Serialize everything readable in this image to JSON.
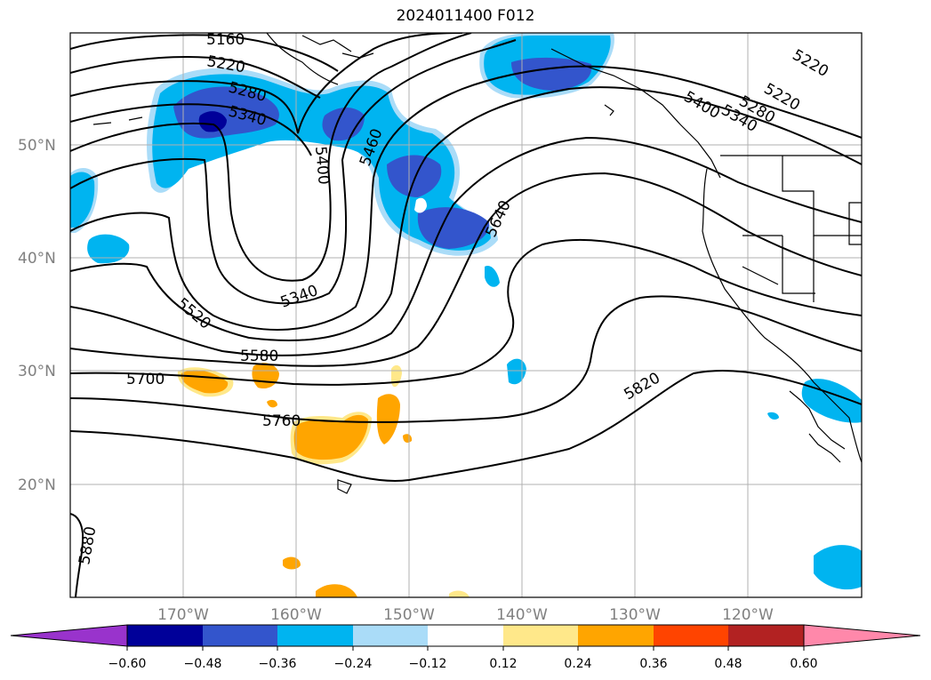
{
  "title": "2024011400 F012",
  "map": {
    "lat_labels": [
      "50°N",
      "40°N",
      "30°N",
      "20°N"
    ],
    "lon_labels": [
      "170°W",
      "160°W",
      "150°W",
      "140°W",
      "130°W",
      "120°W"
    ],
    "lat_values": [
      50,
      40,
      30,
      20
    ],
    "lon_values": [
      -170,
      -160,
      -150,
      -140,
      -130,
      -120
    ],
    "extent": {
      "lon_min": -180,
      "lon_max": -110,
      "lat_min": 10,
      "lat_max": 60
    },
    "label_color": "#808080",
    "contour_color": "#000000",
    "contour_labels": [
      "5160",
      "5220",
      "5280",
      "5340",
      "5400",
      "5460",
      "5520",
      "5580",
      "5640",
      "5700",
      "5760",
      "5820",
      "5880",
      "5340",
      "5220",
      "5220",
      "5280",
      "5340",
      "5400"
    ]
  },
  "colorbar": {
    "ticks": [
      "−0.60",
      "−0.48",
      "−0.36",
      "−0.24",
      "−0.12",
      "0.12",
      "0.24",
      "0.36",
      "0.48",
      "0.60"
    ],
    "colors": [
      "#9933cc",
      "#000099",
      "#3355cc",
      "#00b4f0",
      "#aadcf8",
      "#ffffff",
      "#ffe88a",
      "#ffa500",
      "#ff4400",
      "#b22222",
      "#ff88aa"
    ]
  }
}
